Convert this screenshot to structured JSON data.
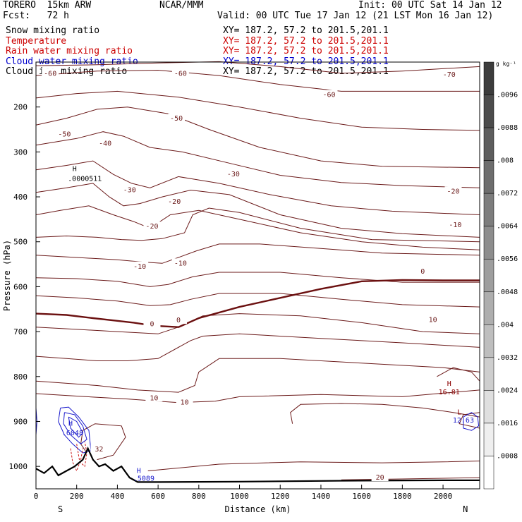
{
  "header": {
    "model": "TORERO  15km ARW",
    "center": "NCAR/MMM",
    "init": "Init: 00 UTC Sat 14 Jan 12",
    "fcst": "Fcst:   72 h",
    "valid": "Valid: 00 UTC Tue 17 Jan 12 (21 LST Mon 16 Jan 12)"
  },
  "legend": [
    {
      "label": "Snow mixing ratio",
      "xy": "XY= 187.2, 57.2 to 201.5,201.1",
      "label_color": "#000000",
      "xy_color": "#000000"
    },
    {
      "label": "Temperature",
      "xy": "XY= 187.2, 57.2 to 201.5,201.1",
      "label_color": "#cc0000",
      "xy_color": "#cc0000"
    },
    {
      "label": "Rain water mixing ratio",
      "xy": "XY= 187.2, 57.2 to 201.5,201.1",
      "label_color": "#cc0000",
      "xy_color": "#cc0000"
    },
    {
      "label": "Cloud water mixing ratio",
      "xy": "XY= 187.2, 57.2 to 201.5,201.1",
      "label_color": "#0000cc",
      "xy_color": "#0000cc"
    },
    {
      "label": "Cloud ice mixing ratio",
      "xy": "XY= 187.2, 57.2 to 201.5,201.1",
      "label_color": "#000000",
      "xy_color": "#000000"
    }
  ],
  "colors": {
    "temperature": "#6b1a1a",
    "zero_isotherm": "#6b1010",
    "cloud_water": "#1a1acc",
    "rain": "#cc1a1a",
    "terrain": "#000000"
  },
  "chart_data": {
    "type": "contour",
    "xlabel": "Distance (km)",
    "ylabel": "Pressure (hPa)",
    "xlim": [
      0,
      2180
    ],
    "ylim": [
      1050,
      100
    ],
    "x_ticks": [
      "0",
      "200",
      "400",
      "600",
      "800",
      "1000",
      "1200",
      "1400",
      "1600",
      "1800",
      "2000"
    ],
    "y_ticks": [
      "200",
      "300",
      "400",
      "500",
      "600",
      "700",
      "800",
      "900",
      "1000"
    ],
    "left_end": "S",
    "right_end": "N",
    "colorbar": {
      "unit": "g kg⁻¹",
      "labels": [
        ".0096",
        ".0088",
        ".008",
        ".0072",
        ".0064",
        ".0056",
        ".0048",
        ".004",
        ".0032",
        ".0024",
        ".0016",
        ".0008"
      ]
    },
    "contour_labels": [
      {
        "text": "-70",
        "x": 2030,
        "p": 128
      },
      {
        "text": "-60",
        "x": 70,
        "p": 126
      },
      {
        "text": "-60",
        "x": 710,
        "p": 126
      },
      {
        "text": "-60",
        "x": 1440,
        "p": 173
      },
      {
        "text": "-50",
        "x": 140,
        "p": 261
      },
      {
        "text": "-50",
        "x": 690,
        "p": 226
      },
      {
        "text": "-40",
        "x": 340,
        "p": 281
      },
      {
        "text": "-30",
        "x": 460,
        "p": 385
      },
      {
        "text": "-30",
        "x": 970,
        "p": 350
      },
      {
        "text": "-20",
        "x": 680,
        "p": 411
      },
      {
        "text": "-20",
        "x": 570,
        "p": 466
      },
      {
        "text": "-20",
        "x": 2050,
        "p": 388
      },
      {
        "text": "-10",
        "x": 510,
        "p": 555
      },
      {
        "text": "-10",
        "x": 710,
        "p": 548
      },
      {
        "text": "-10",
        "x": 2060,
        "p": 463
      },
      {
        "text": "0",
        "x": 570,
        "p": 683
      },
      {
        "text": "0",
        "x": 700,
        "p": 675
      },
      {
        "text": "0",
        "x": 1900,
        "p": 566
      },
      {
        "text": "10",
        "x": 580,
        "p": 848
      },
      {
        "text": "10",
        "x": 730,
        "p": 858
      },
      {
        "text": "10",
        "x": 1950,
        "p": 674
      },
      {
        "text": "20",
        "x": 1690,
        "p": 1025
      },
      {
        "text": "32",
        "x": 310,
        "p": 962
      }
    ],
    "annotations": [
      {
        "text": "H",
        "x": 190,
        "p": 338
      },
      {
        "text": ".0000511",
        "x": 240,
        "p": 360
      },
      {
        "text": "H",
        "x": 2030,
        "p": 816
      },
      {
        "text": "16.81",
        "x": 2030,
        "p": 835
      },
      {
        "text": "L",
        "x": 2080,
        "p": 880
      },
      {
        "text": "12.63",
        "x": 2100,
        "p": 898
      },
      {
        "text": "H",
        "x": 170,
        "p": 905
      },
      {
        "text": ".6048",
        "x": 180,
        "p": 926
      },
      {
        "text": "H",
        "x": 505,
        "p": 1010
      },
      {
        "text": ".5089",
        "x": 530,
        "p": 1027
      }
    ]
  }
}
